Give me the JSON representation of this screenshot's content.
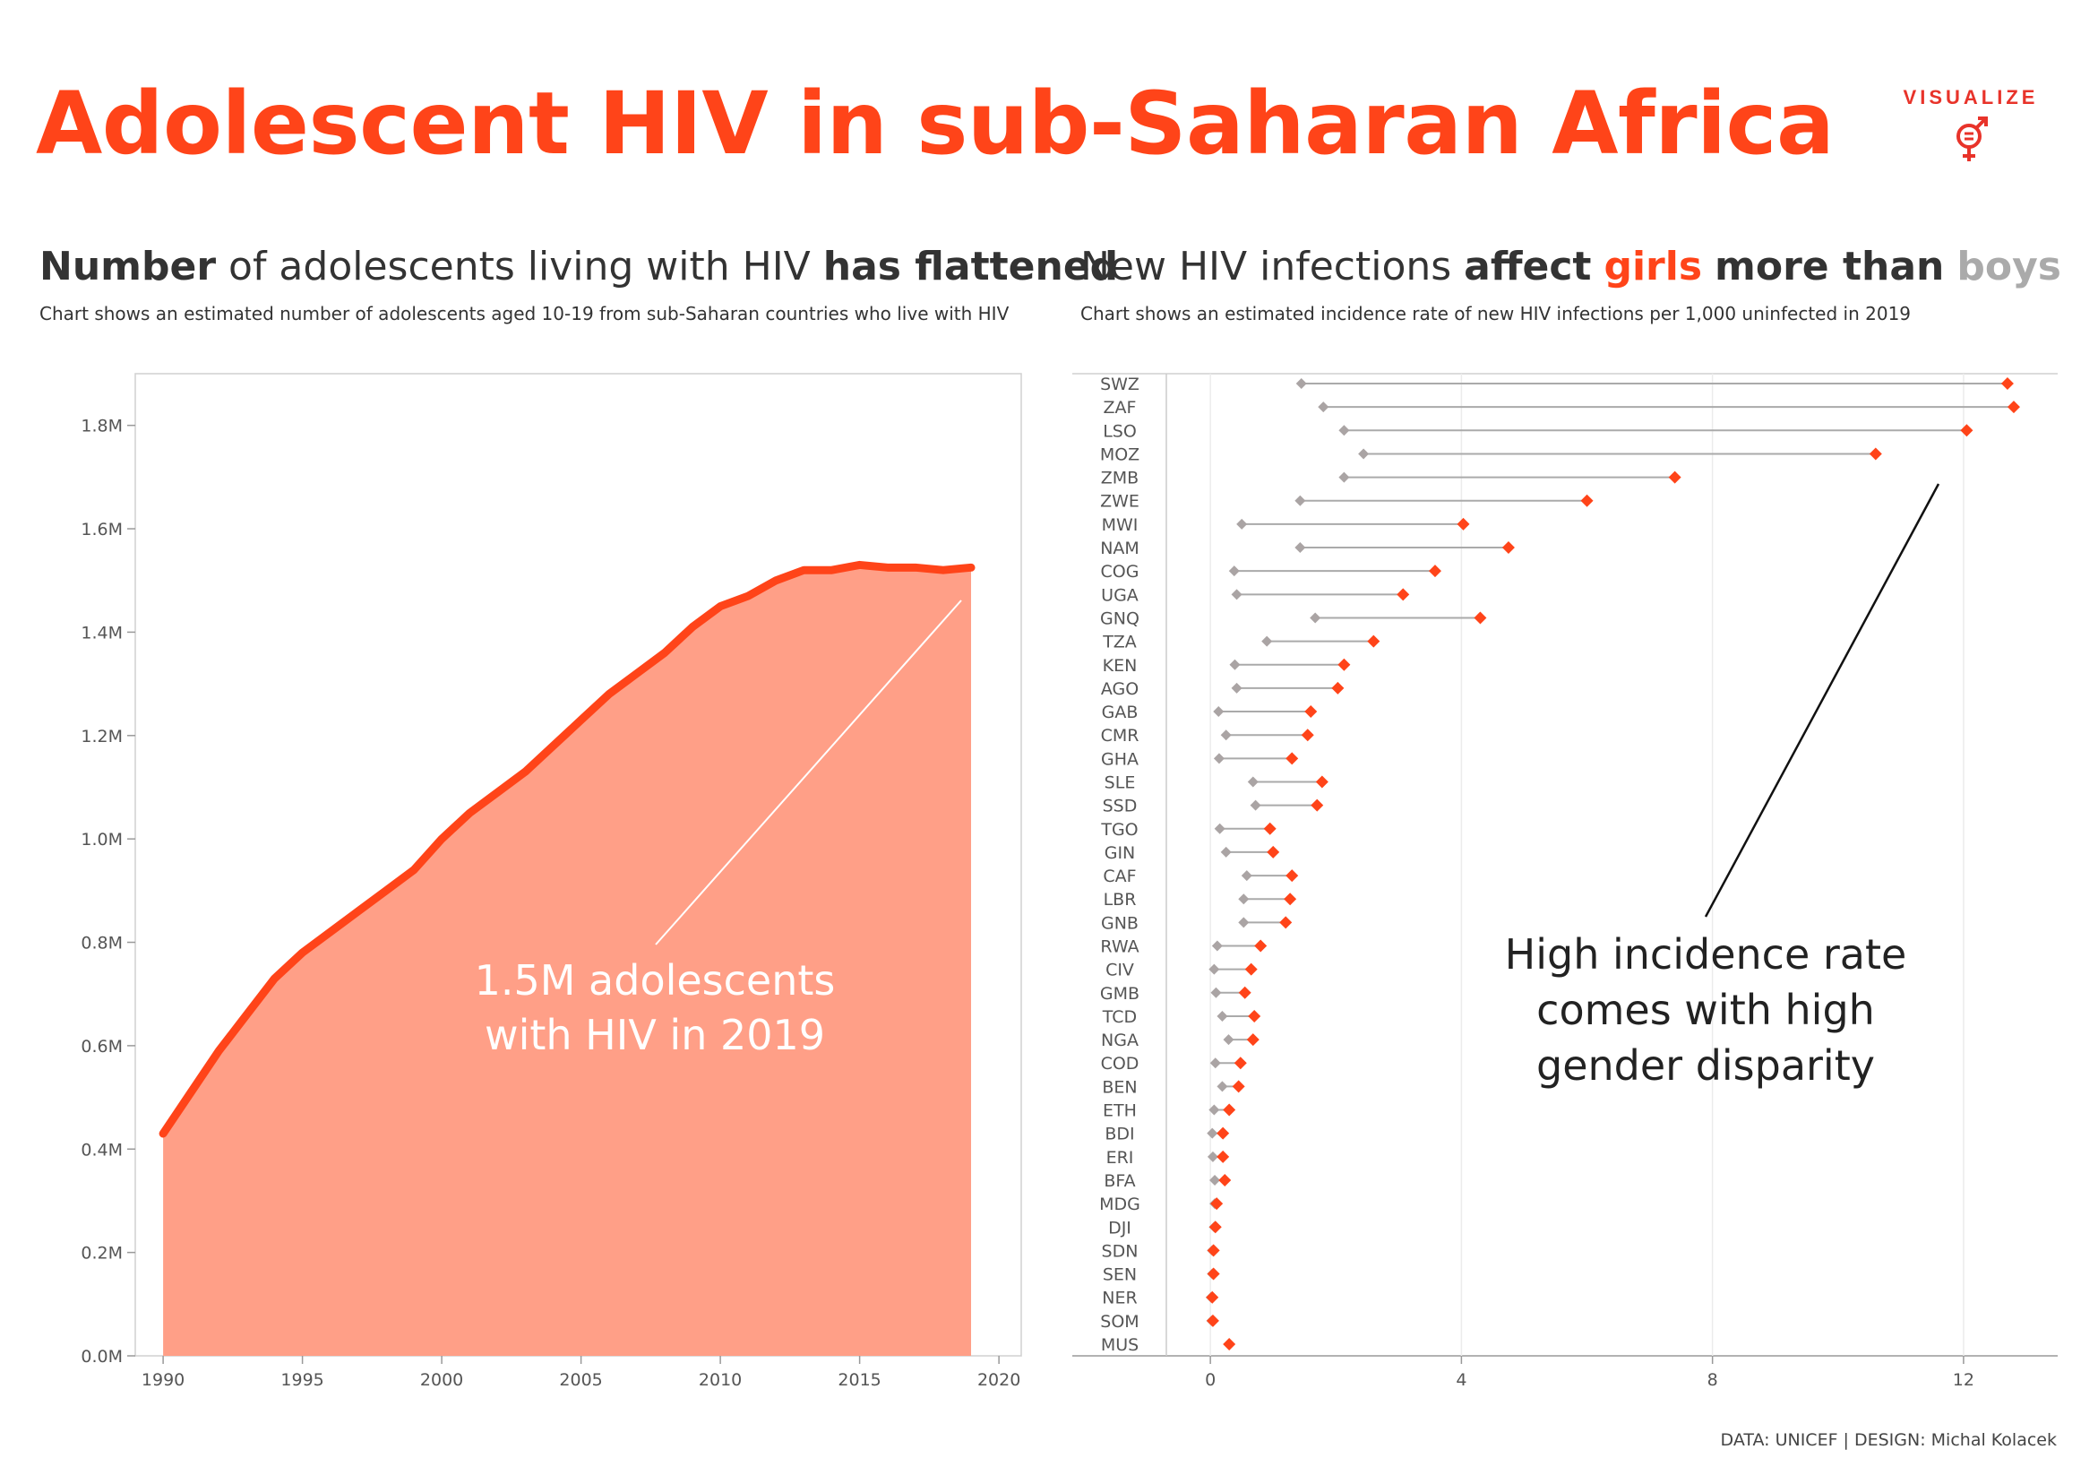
{
  "title": "Adolescent HIV in sub-Saharan Africa",
  "logo": {
    "text": "VISUALIZE",
    "icon": "gender-equality-icon"
  },
  "left_panel": {
    "title_bold_1": "Number",
    "title_mid": " of adolescents living with HIV ",
    "title_bold_2": "has flattened",
    "subtitle": "Chart shows an estimated number of adolescents aged 10-19 from sub-Saharan countries who live with HIV",
    "annotation_line_1": "1.5M adolescents",
    "annotation_line_2": "with HIV in 2019"
  },
  "right_panel": {
    "title_1": "New HIV infections ",
    "title_bold": "affect",
    "title_girls": "girls",
    "title_bold_2": "more than",
    "title_boys": "boys",
    "subtitle": "Chart shows an estimated incidence rate of new HIV infections per 1,000 uninfected in 2019",
    "annotation_line_1": "High incidence rate",
    "annotation_line_2": "comes with high",
    "annotation_line_3": "gender disparity"
  },
  "footer": "DATA: UNICEF | DESIGN: Michal Kolacek",
  "colors": {
    "accent": "#ff4419",
    "area_fill": "#ff9f87",
    "boys": "#aaa4a4",
    "girls": "#ff4419",
    "connector": "#aaaaaa"
  },
  "chart_data": [
    {
      "type": "area",
      "x": [
        1990,
        1991,
        1992,
        1993,
        1994,
        1995,
        1996,
        1997,
        1998,
        1999,
        2000,
        2001,
        2002,
        2003,
        2004,
        2005,
        2006,
        2007,
        2008,
        2009,
        2010,
        2011,
        2012,
        2013,
        2014,
        2015,
        2016,
        2017,
        2018,
        2019
      ],
      "values": [
        0.43,
        0.51,
        0.59,
        0.66,
        0.73,
        0.78,
        0.82,
        0.86,
        0.9,
        0.94,
        1.0,
        1.05,
        1.09,
        1.13,
        1.18,
        1.23,
        1.28,
        1.32,
        1.36,
        1.41,
        1.45,
        1.47,
        1.5,
        1.52,
        1.52,
        1.53,
        1.525,
        1.525,
        1.52,
        1.525
      ],
      "ylim": [
        0,
        1.9
      ],
      "yticks": [
        0.0,
        0.2,
        0.4,
        0.6,
        0.8,
        1.0,
        1.2,
        1.4,
        1.6,
        1.8
      ],
      "ytick_labels": [
        "0.0M",
        "0.2M",
        "0.4M",
        "0.6M",
        "0.8M",
        "1.0M",
        "1.2M",
        "1.4M",
        "1.6M",
        "1.8M"
      ],
      "xlim": [
        1989,
        2020.8
      ],
      "xticks": [
        1990,
        1995,
        2000,
        2005,
        2010,
        2015,
        2020
      ],
      "xtick_labels": [
        "1990",
        "1995",
        "2000",
        "2005",
        "2010",
        "2015",
        "2020"
      ]
    },
    {
      "type": "scatter",
      "categories": [
        "SWZ",
        "ZAF",
        "LSO",
        "MOZ",
        "ZMB",
        "ZWE",
        "MWI",
        "NAM",
        "COG",
        "UGA",
        "GNQ",
        "TZA",
        "KEN",
        "AGO",
        "GAB",
        "CMR",
        "GHA",
        "SLE",
        "SSD",
        "TGO",
        "GIN",
        "CAF",
        "LBR",
        "GNB",
        "RWA",
        "CIV",
        "GMB",
        "TCD",
        "NGA",
        "COD",
        "BEN",
        "ETH",
        "BDI",
        "ERI",
        "BFA",
        "MDG",
        "DJI",
        "SDN",
        "SEN",
        "NER",
        "SOM",
        "MUS"
      ],
      "series": [
        {
          "name": "boys",
          "values": [
            1.45,
            1.8,
            2.13,
            2.44,
            2.13,
            1.43,
            0.5,
            1.43,
            0.38,
            0.42,
            1.67,
            0.9,
            0.39,
            0.42,
            0.13,
            0.25,
            0.14,
            0.68,
            0.72,
            0.15,
            0.25,
            0.58,
            0.53,
            0.53,
            0.11,
            0.06,
            0.09,
            0.19,
            0.29,
            0.08,
            0.19,
            0.06,
            0.03,
            0.04,
            0.07,
            0.07,
            0.06,
            0.03,
            0.03,
            0.01,
            0.02,
            0.3
          ]
        },
        {
          "name": "girls",
          "values": [
            12.7,
            12.8,
            12.05,
            10.6,
            7.4,
            6.0,
            4.03,
            4.75,
            3.58,
            3.07,
            4.3,
            2.6,
            2.13,
            2.03,
            1.6,
            1.55,
            1.3,
            1.78,
            1.7,
            0.95,
            1.0,
            1.3,
            1.27,
            1.2,
            0.8,
            0.65,
            0.55,
            0.7,
            0.68,
            0.48,
            0.45,
            0.3,
            0.2,
            0.2,
            0.23,
            0.1,
            0.08,
            0.05,
            0.05,
            0.03,
            0.04,
            0.3
          ]
        }
      ],
      "xlim": [
        -2.2,
        13.5
      ],
      "xticks": [
        0,
        4,
        8,
        12
      ],
      "xtick_labels": [
        "0",
        "4",
        "8",
        "12"
      ]
    }
  ]
}
